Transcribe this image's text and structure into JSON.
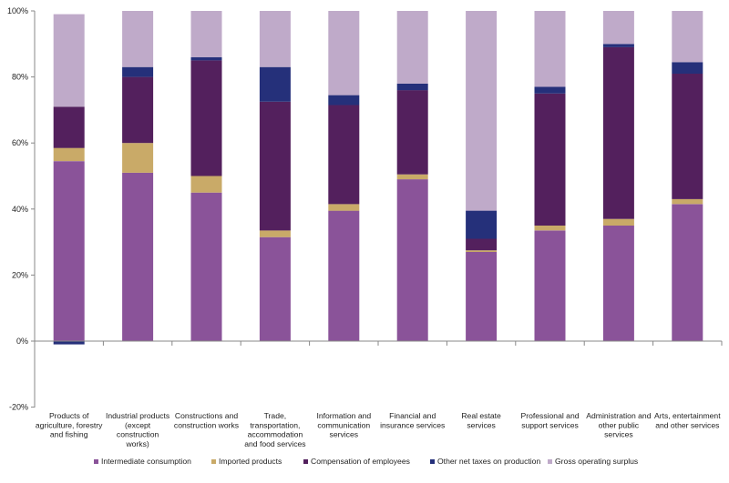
{
  "chart_data": {
    "type": "bar",
    "stacked": true,
    "title": "",
    "xlabel": "",
    "ylabel": "",
    "ylim": [
      -20,
      100
    ],
    "y_ticks": [
      -20,
      0,
      20,
      40,
      60,
      80,
      100
    ],
    "y_tick_labels": [
      "-20%",
      "0%",
      "20%",
      "40%",
      "60%",
      "80%",
      "100%"
    ],
    "grid": false,
    "legend_position": "bottom",
    "categories": [
      [
        "Products of",
        "agriculture, forestry",
        "and fishing"
      ],
      [
        "Industrial products",
        "(except",
        "construction",
        "works)"
      ],
      [
        "Constructions and",
        "construction works"
      ],
      [
        "Trade,",
        "transportation,",
        "accommodation",
        "and food services"
      ],
      [
        "Information and",
        "communication",
        "services"
      ],
      [
        "Financial and",
        "insurance services"
      ],
      [
        "Real estate",
        "services"
      ],
      [
        "Professional and",
        "support services"
      ],
      [
        "Administration and",
        "other public",
        "services"
      ],
      [
        "Arts, entertainment",
        "and other services"
      ]
    ],
    "series": [
      {
        "name": "Intermediate consumption",
        "color": "#8a5399",
        "values": [
          54.5,
          51,
          45,
          31.5,
          39.5,
          49,
          27,
          33.5,
          35,
          41.5
        ]
      },
      {
        "name": "Imported products",
        "color": "#c9aa68",
        "values": [
          4,
          9,
          5,
          2,
          2,
          1.5,
          0.5,
          1.5,
          2,
          1.5
        ]
      },
      {
        "name": "Compensation of employees",
        "color": "#53205d",
        "values": [
          12.5,
          20,
          35,
          39,
          30,
          25.5,
          3.5,
          40,
          52,
          38
        ]
      },
      {
        "name": "Other net taxes on production",
        "color": "#25307a",
        "values": [
          -1,
          3,
          1,
          10.5,
          3,
          2,
          8.5,
          2,
          1,
          3.5
        ]
      },
      {
        "name": "Gross operating surplus",
        "color": "#bfaac9",
        "values": [
          28,
          17,
          14,
          17,
          25.5,
          22,
          60.5,
          23,
          10,
          15.5
        ]
      }
    ]
  }
}
